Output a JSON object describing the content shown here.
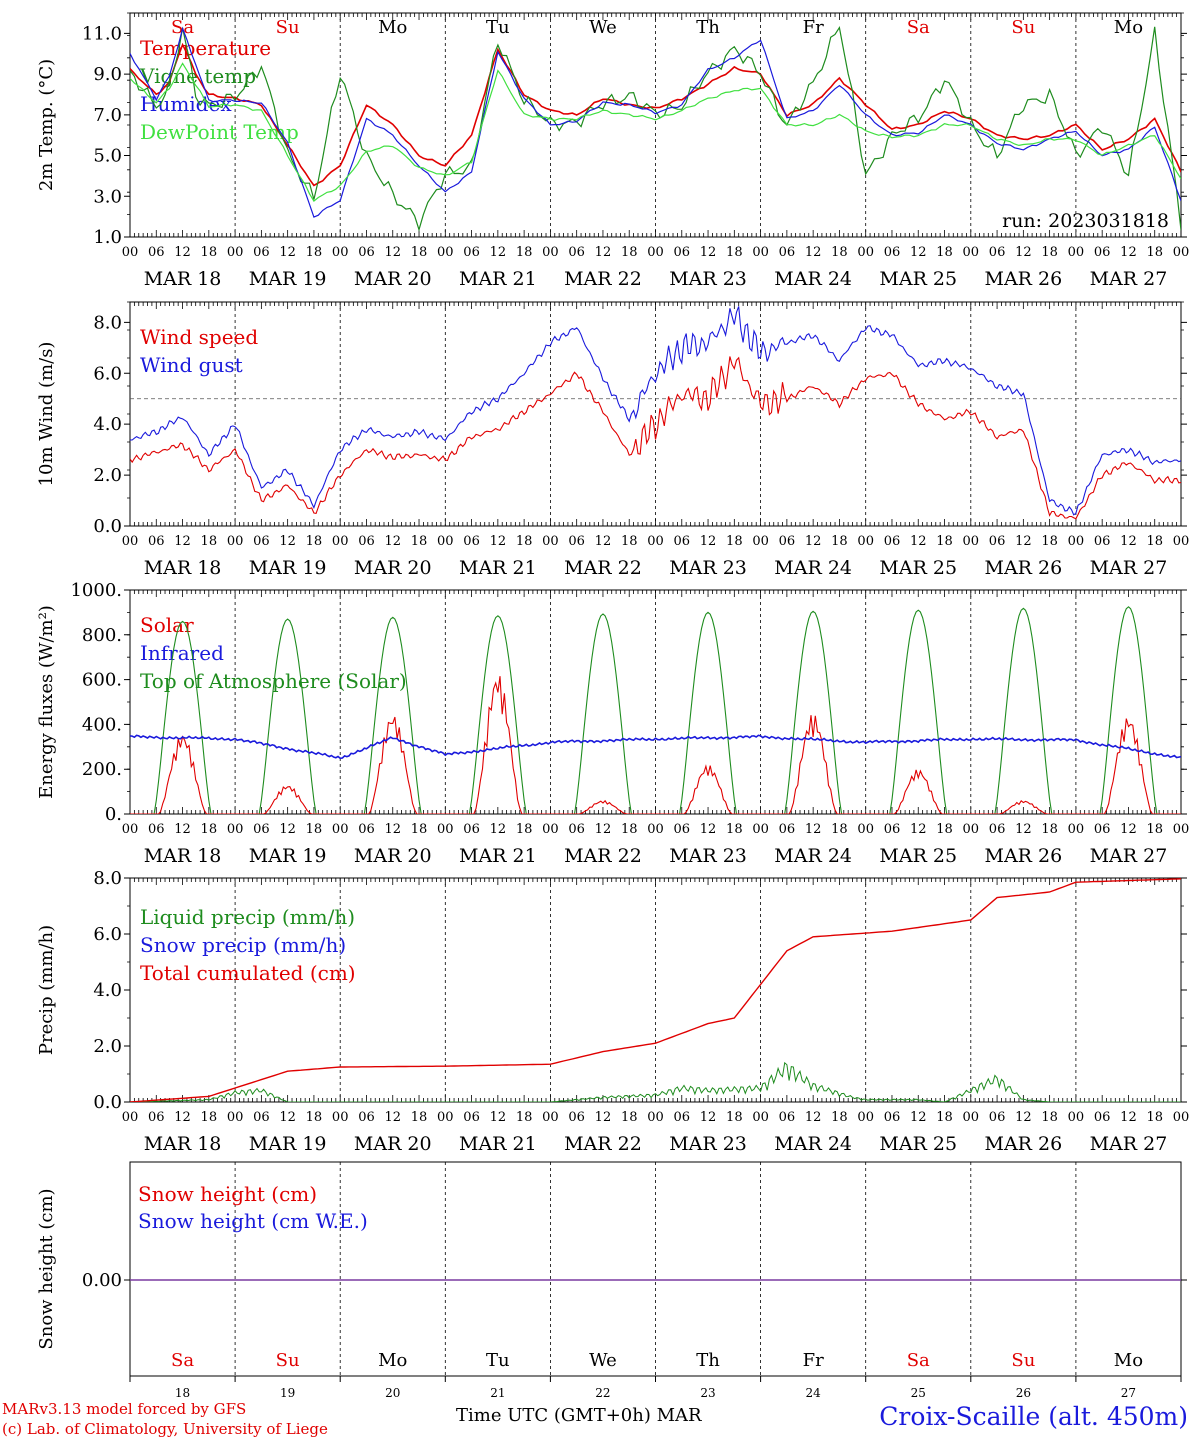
{
  "chart_data": {
    "type": "line",
    "day_weekdays": [
      "Sa",
      "Su",
      "Mo",
      "Tu",
      "We",
      "Th",
      "Fr",
      "Sa",
      "Su",
      "Mo"
    ],
    "weekend_flags": [
      true,
      true,
      false,
      false,
      false,
      false,
      false,
      true,
      true,
      false
    ],
    "day_labels": [
      "MAR 18",
      "MAR 19",
      "MAR 20",
      "MAR 21",
      "MAR 22",
      "MAR 23",
      "MAR 24",
      "MAR 25",
      "MAR 26",
      "MAR 27"
    ],
    "hour_ticks": [
      "00",
      "06",
      "12",
      "18"
    ],
    "hour_end": "00",
    "day_numbers": [
      "18",
      "19",
      "20",
      "21",
      "22",
      "23",
      "24",
      "25",
      "26",
      "27"
    ],
    "colors": {
      "red": "#e00000",
      "green": "#1e8c1e",
      "blue": "#1a1adc",
      "lightgreen": "#40e040",
      "purple": "#7a3aa0"
    },
    "panels": [
      {
        "ylabel": "2m Temp. (°C)",
        "ylim": [
          1,
          12
        ],
        "yticks": [
          "1.0",
          "3.0",
          "5.0",
          "7.0",
          "9.0",
          "11.0"
        ],
        "annotation": "run: 2023031818",
        "series": [
          {
            "name": "Temperature",
            "color": "red",
            "x": [
              0,
              6,
              9,
              12,
              15,
              18,
              24,
              30,
              36,
              42,
              48,
              54,
              60,
              66,
              72,
              78,
              84,
              90,
              96,
              102,
              108,
              114,
              120,
              126,
              132,
              138,
              144,
              150,
              156,
              162,
              168,
              174,
              180,
              186,
              192,
              198,
              204,
              210,
              216,
              222,
              228,
              234,
              240
            ],
            "y": [
              9.2,
              8.0,
              8.6,
              10.5,
              9.0,
              8.0,
              7.8,
              7.5,
              5.5,
              3.5,
              4.5,
              7.5,
              6.5,
              5.0,
              4.5,
              6.0,
              10.2,
              8.0,
              7.2,
              7.0,
              7.8,
              7.5,
              7.3,
              7.8,
              8.5,
              9.3,
              9.0,
              7.0,
              7.5,
              8.8,
              7.5,
              6.3,
              6.5,
              7.2,
              6.8,
              6.0,
              5.8,
              6.0,
              6.5,
              5.3,
              5.8,
              6.8,
              4.2
            ]
          },
          {
            "name": "Vigne temp",
            "color": "green",
            "x": [
              0,
              6,
              9,
              12,
              15,
              18,
              24,
              30,
              36,
              42,
              48,
              54,
              60,
              66,
              72,
              78,
              84,
              90,
              96,
              102,
              108,
              114,
              120,
              126,
              132,
              138,
              144,
              150,
              156,
              162,
              168,
              174,
              180,
              186,
              192,
              198,
              204,
              210,
              216,
              222,
              228,
              234,
              240
            ],
            "y": [
              9.0,
              7.5,
              8.3,
              11.2,
              8.0,
              7.5,
              7.8,
              9.5,
              5.0,
              3.0,
              9.0,
              5.0,
              3.0,
              1.8,
              4.0,
              4.5,
              10.6,
              7.8,
              6.5,
              6.7,
              7.5,
              8.0,
              7.0,
              7.5,
              9.0,
              10.3,
              9.0,
              6.5,
              8.5,
              11.5,
              4.0,
              6.0,
              6.8,
              8.8,
              6.5,
              5.0,
              7.5,
              8.0,
              5.0,
              6.5,
              4.0,
              11.0,
              1.5
            ]
          },
          {
            "name": "Humidex",
            "color": "blue",
            "x": [
              0,
              6,
              9,
              12,
              15,
              18,
              24,
              30,
              36,
              42,
              48,
              54,
              60,
              66,
              72,
              78,
              84,
              90,
              96,
              102,
              108,
              114,
              120,
              126,
              132,
              138,
              144,
              150,
              156,
              162,
              168,
              174,
              180,
              186,
              192,
              198,
              204,
              210,
              216,
              222,
              228,
              234,
              240
            ],
            "y": [
              10.0,
              7.8,
              8.9,
              11.2,
              9.5,
              7.7,
              7.7,
              7.6,
              5.6,
              2.0,
              2.8,
              6.8,
              6.0,
              4.5,
              3.2,
              4.2,
              10.1,
              7.8,
              6.5,
              6.7,
              7.6,
              7.5,
              7.1,
              7.5,
              9.2,
              9.8,
              10.7,
              6.8,
              7.2,
              8.5,
              7.0,
              6.0,
              6.1,
              7.0,
              6.5,
              5.6,
              5.3,
              5.8,
              6.2,
              5.0,
              5.3,
              6.4,
              2.8
            ]
          },
          {
            "name": "DewPoint Temp",
            "color": "lightgreen",
            "x": [
              0,
              6,
              9,
              12,
              15,
              18,
              24,
              30,
              36,
              42,
              48,
              54,
              60,
              66,
              72,
              78,
              84,
              90,
              96,
              102,
              108,
              114,
              120,
              126,
              132,
              138,
              144,
              150,
              156,
              162,
              168,
              174,
              180,
              186,
              192,
              198,
              204,
              210,
              216,
              222,
              228,
              234,
              240
            ],
            "y": [
              8.8,
              7.6,
              8.3,
              9.5,
              8.5,
              7.4,
              7.5,
              7.2,
              5.0,
              2.8,
              3.5,
              5.2,
              5.5,
              4.4,
              4.0,
              4.7,
              9.2,
              7.0,
              6.8,
              6.8,
              7.2,
              7.0,
              6.8,
              7.2,
              7.8,
              8.2,
              8.3,
              6.5,
              6.5,
              7.0,
              6.2,
              5.9,
              6.0,
              6.5,
              6.5,
              5.8,
              5.5,
              5.8,
              5.8,
              5.0,
              5.5,
              6.0,
              3.9
            ]
          }
        ]
      },
      {
        "ylabel": "10m Wind (m/s)",
        "ylim": [
          0,
          8.8
        ],
        "yticks": [
          "0.0",
          "2.0",
          "4.0",
          "6.0",
          "8.0"
        ],
        "reference_line": 5,
        "series": [
          {
            "name": "Wind speed",
            "color": "red",
            "x": [
              0,
              6,
              12,
              18,
              24,
              30,
              36,
              42,
              48,
              54,
              60,
              66,
              72,
              78,
              84,
              90,
              96,
              102,
              108,
              114,
              120,
              126,
              132,
              138,
              144,
              150,
              156,
              162,
              168,
              174,
              180,
              186,
              192,
              198,
              204,
              210,
              216,
              222,
              228,
              234,
              240
            ],
            "y": [
              2.6,
              2.9,
              3.2,
              2.2,
              3.0,
              1.0,
              1.6,
              0.5,
              2.0,
              3.0,
              2.7,
              2.8,
              2.6,
              3.5,
              3.8,
              4.5,
              5.2,
              6.0,
              4.5,
              2.8,
              4.0,
              5.2,
              5.0,
              6.5,
              4.8,
              5.0,
              5.5,
              4.8,
              5.8,
              6.0,
              4.8,
              4.2,
              4.5,
              3.5,
              3.8,
              0.5,
              0.3,
              2.0,
              2.5,
              1.8,
              1.8
            ]
          },
          {
            "name": "Wind gust",
            "color": "blue",
            "x": [
              0,
              6,
              12,
              18,
              24,
              30,
              36,
              42,
              48,
              54,
              60,
              66,
              72,
              78,
              84,
              90,
              96,
              102,
              108,
              114,
              120,
              126,
              132,
              138,
              144,
              150,
              156,
              162,
              168,
              174,
              180,
              186,
              192,
              198,
              204,
              210,
              216,
              222,
              228,
              234,
              240
            ],
            "y": [
              3.4,
              3.7,
              4.3,
              2.8,
              4.0,
              1.5,
              2.2,
              0.8,
              3.0,
              3.8,
              3.5,
              3.7,
              3.4,
              4.5,
              5.0,
              6.0,
              7.2,
              7.8,
              5.8,
              4.2,
              6.0,
              7.0,
              7.2,
              8.3,
              6.8,
              7.2,
              7.5,
              6.5,
              7.8,
              7.5,
              6.3,
              6.5,
              6.2,
              5.5,
              5.2,
              1.0,
              0.5,
              2.8,
              3.0,
              2.5,
              2.6
            ]
          }
        ]
      },
      {
        "ylabel": "Energy fluxes (W/m²)",
        "ylim": [
          0,
          1000
        ],
        "yticks": [
          "0.",
          "200.",
          "400.",
          "600.",
          "800.",
          "1000."
        ],
        "series": [
          {
            "name": "Solar",
            "color": "red",
            "peaks": [
              360,
              130,
              450,
              630,
              60,
              220,
              450,
              200,
              60,
              440
            ]
          },
          {
            "name": "Infrared",
            "color": "blue",
            "x": [
              0,
              24,
              48,
              60,
              72,
              96,
              120,
              144,
              168,
              192,
              216,
              240
            ],
            "y": [
              345,
              335,
              250,
              340,
              265,
              320,
              335,
              345,
              320,
              335,
              330,
              250
            ]
          },
          {
            "name": "Top of Atmosphere (Solar)",
            "color": "green",
            "peaks": [
              860,
              870,
              878,
              885,
              893,
              900,
              905,
              910,
              918,
              925
            ]
          }
        ]
      },
      {
        "ylabel": "Precip (mm/h)",
        "ylim": [
          0,
          8
        ],
        "yticks": [
          "0.0",
          "2.0",
          "4.0",
          "6.0",
          "8.0"
        ],
        "series": [
          {
            "name": "Liquid precip (mm/h)",
            "color": "green",
            "x": [
              0,
              18,
              24,
              30,
              36,
              96,
              108,
              120,
              126,
              132,
              144,
              150,
              156,
              165,
              168,
              180,
              186,
              198,
              204,
              210,
              240
            ],
            "y": [
              0,
              0.1,
              0.4,
              0.5,
              0,
              0,
              0.2,
              0.3,
              0.6,
              0.5,
              0.6,
              1.5,
              0.7,
              0.2,
              0.1,
              0.1,
              0,
              1.0,
              0.1,
              0,
              0
            ]
          },
          {
            "name": "Snow precip (mm/h)",
            "color": "blue",
            "x": [
              0,
              240
            ],
            "y": [
              0,
              0
            ]
          },
          {
            "name": "Total cumulated (cm)",
            "color": "red",
            "x": [
              0,
              18,
              24,
              30,
              36,
              48,
              72,
              96,
              108,
              120,
              132,
              138,
              144,
              150,
              156,
              174,
              192,
              198,
              210,
              216,
              240
            ],
            "y": [
              0,
              0.2,
              0.5,
              0.8,
              1.1,
              1.25,
              1.28,
              1.35,
              1.8,
              2.1,
              2.8,
              3.0,
              4.2,
              5.4,
              5.9,
              6.1,
              6.5,
              7.3,
              7.5,
              7.85,
              7.97
            ]
          }
        ]
      },
      {
        "ylabel": "Snow height (cm)",
        "yticks": [
          "0.00"
        ],
        "series": [
          {
            "name": "Snow height (cm)",
            "color": "red",
            "value": 0
          },
          {
            "name": "Snow height (cm W.E.)",
            "color": "blue",
            "value": 0
          }
        ]
      }
    ],
    "xlabel": "Time UTC (GMT+0h)",
    "month": "MAR"
  },
  "footer": {
    "credit_line1": "MARv3.13 model forced by GFS",
    "credit_line2": "(c) Lab. of Climatology, University of Liege",
    "station": "Croix-Scaille (alt. 450m)"
  }
}
